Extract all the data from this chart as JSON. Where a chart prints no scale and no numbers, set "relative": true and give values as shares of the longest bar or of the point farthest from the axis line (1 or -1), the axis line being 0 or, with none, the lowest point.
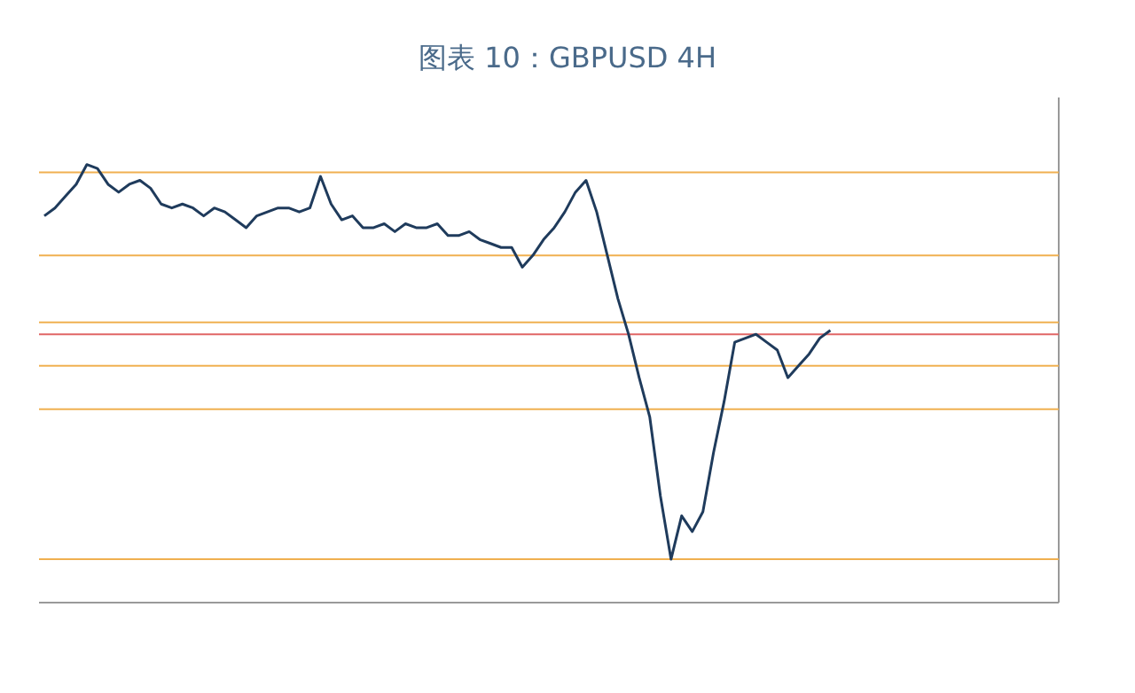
{
  "chart_data": {
    "type": "line",
    "title": "图表 10：GBPUSD 4H",
    "relative": true,
    "categories": [
      null,
      null,
      null,
      null,
      null,
      null,
      null,
      null,
      null,
      null,
      null,
      null,
      null,
      null,
      null,
      null,
      null,
      null,
      null,
      null,
      null,
      null,
      null,
      null,
      null,
      null,
      null,
      null,
      null,
      null,
      null,
      null,
      null,
      null,
      null,
      null,
      null,
      null,
      null,
      null,
      null,
      null,
      null,
      null,
      null,
      null,
      null,
      null,
      null,
      null,
      null,
      null,
      null,
      null,
      null,
      null,
      null,
      null,
      null,
      null,
      null,
      null,
      null,
      null,
      null,
      null,
      null,
      null,
      null,
      null,
      null,
      null,
      null,
      null,
      null,
      null,
      null,
      null,
      null,
      null,
      null,
      null,
      null,
      null,
      null,
      null,
      null,
      null,
      null,
      null,
      null,
      null,
      null,
      null,
      null,
      null
    ],
    "series": [
      {
        "color": "#1f3b5c",
        "values": [
          0.87,
          0.89,
          0.92,
          0.95,
          1.0,
          0.99,
          0.95,
          0.93,
          0.95,
          0.96,
          0.94,
          0.9,
          0.89,
          0.9,
          0.89,
          0.87,
          0.89,
          0.88,
          0.86,
          0.84,
          0.87,
          0.88,
          0.89,
          0.89,
          0.88,
          0.89,
          0.97,
          0.9,
          0.86,
          0.87,
          0.84,
          0.84,
          0.85,
          0.83,
          0.85,
          0.84,
          0.84,
          0.85,
          0.82,
          0.82,
          0.83,
          0.81,
          0.8,
          0.79,
          0.79,
          0.74,
          0.77,
          0.81,
          0.84,
          0.88,
          0.93,
          0.96,
          0.88,
          0.77,
          0.66,
          0.57,
          0.46,
          0.36,
          0.16,
          0.0,
          0.11,
          0.07,
          0.12,
          0.27,
          0.4,
          0.55,
          0.56,
          0.57,
          0.55,
          0.53,
          0.46,
          0.49,
          0.52,
          0.56,
          0.58,
          null,
          null,
          null,
          null,
          null,
          null,
          null,
          null,
          null,
          null,
          null,
          null,
          null,
          null,
          null,
          null,
          null,
          null,
          null,
          null,
          null
        ]
      }
    ],
    "ref_lines": [
      {
        "axis": "y",
        "value": 0.98,
        "color": "#f0b050"
      },
      {
        "axis": "y",
        "value": 0.77,
        "color": "#f0b050"
      },
      {
        "axis": "y",
        "value": 0.6,
        "color": "#f0b050"
      },
      {
        "axis": "y",
        "value": 0.49,
        "color": "#f0b050"
      },
      {
        "axis": "y",
        "value": 0.38,
        "color": "#f0b050"
      },
      {
        "axis": "y",
        "value": 0.0,
        "color": "#f0b050"
      },
      {
        "axis": "y",
        "value": 0.57,
        "color": "#e06666"
      }
    ]
  }
}
